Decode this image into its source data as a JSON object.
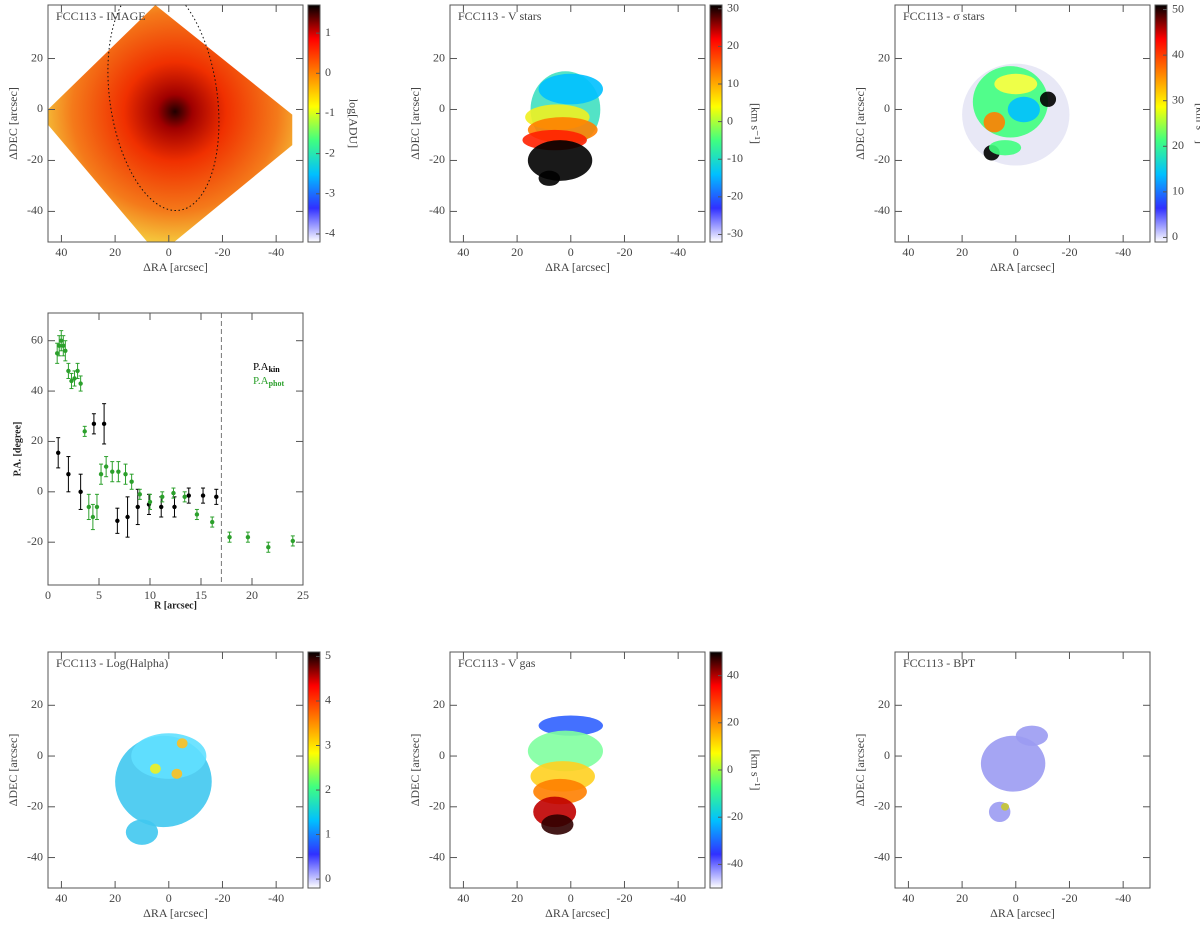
{
  "chart_data": [
    {
      "type": "map",
      "title": "FCC113 - IMAGE",
      "xlabel": "ΔRA [arcsec]",
      "ylabel": "ΔDEC [arcsec]",
      "xlim": [
        45,
        -50
      ],
      "xticks": [
        40,
        20,
        0,
        -20,
        -40
      ],
      "ylim": [
        -52,
        41
      ],
      "yticks": [
        -40,
        -20,
        0,
        20
      ],
      "colorbar": {
        "lim": [
          -4.2,
          1.7
        ],
        "ticks": [
          -4,
          -3,
          -2,
          -1,
          0,
          1
        ],
        "label": "log[ADU]",
        "colormap": [
          "#ffffff",
          "#3030ff",
          "#00c0ff",
          "#40ff80",
          "#ffff00",
          "#ff8000",
          "#ff0000",
          "#000000"
        ]
      }
    },
    {
      "type": "map",
      "title": "FCC113 - V stars",
      "xlabel": "ΔRA [arcsec]",
      "ylabel": "ΔDEC [arcsec]",
      "xlim": [
        45,
        -50
      ],
      "xticks": [
        40,
        20,
        0,
        -20,
        -40
      ],
      "ylim": [
        -52,
        41
      ],
      "yticks": [
        -40,
        -20,
        0,
        20
      ],
      "colorbar": {
        "lim": [
          -32,
          31
        ],
        "ticks": [
          -30,
          -20,
          -10,
          0,
          10,
          20,
          30
        ],
        "label": "[km s⁻¹]",
        "colormap": [
          "#ffffff",
          "#3030ff",
          "#00c0ff",
          "#40ff80",
          "#ffff00",
          "#ff8000",
          "#ff0000",
          "#000000"
        ]
      }
    },
    {
      "type": "map",
      "title": "FCC113 - σ stars",
      "xlabel": "ΔRA [arcsec]",
      "ylabel": "ΔDEC [arcsec]",
      "xlim": [
        45,
        -50
      ],
      "xticks": [
        40,
        20,
        0,
        -20,
        -40
      ],
      "ylim": [
        -52,
        41
      ],
      "yticks": [
        -40,
        -20,
        0,
        20
      ],
      "colorbar": {
        "lim": [
          -1,
          51
        ],
        "ticks": [
          0,
          10,
          20,
          30,
          40,
          50
        ],
        "label": "[km s⁻¹]",
        "colormap": [
          "#ffffff",
          "#3030ff",
          "#00c0ff",
          "#40ff80",
          "#ffff00",
          "#ff8000",
          "#ff0000",
          "#000000"
        ]
      }
    },
    {
      "type": "scatter",
      "xlabel": "R [arcsec]",
      "ylabel": "P.A. [degree]",
      "xlim": [
        0,
        25
      ],
      "xticks": [
        0,
        5,
        10,
        15,
        20,
        25
      ],
      "ylim": [
        -37,
        71
      ],
      "yticks": [
        -20,
        0,
        20,
        40,
        60
      ],
      "vline": 17,
      "series": [
        {
          "name": "P.A",
          "subscript": "kin",
          "color": "#000000",
          "x": [
            1.0,
            2.0,
            3.2,
            4.5,
            5.5,
            6.8,
            7.8,
            8.8,
            9.9,
            11.1,
            12.4,
            13.8,
            15.2,
            16.5
          ],
          "values": [
            15.5,
            7,
            0,
            27,
            27,
            -11.5,
            -10,
            -6,
            -5,
            -6,
            -6,
            -1.5,
            -1.5,
            -2
          ],
          "errors": [
            6,
            7,
            7,
            4,
            8,
            5,
            8,
            7,
            4,
            4,
            4,
            3,
            3,
            3
          ]
        },
        {
          "name": "P.A",
          "subscript": "phot",
          "color": "#2ca02c",
          "x": [
            0.9,
            1.1,
            1.3,
            1.5,
            1.7,
            2.0,
            2.3,
            2.6,
            2.9,
            3.2,
            3.6,
            4.0,
            4.4,
            4.8,
            5.2,
            5.7,
            6.3,
            6.9,
            7.6,
            8.2,
            9.0,
            10.0,
            11.2,
            12.3,
            13.4,
            14.6,
            16.1,
            17.8,
            19.6,
            21.6,
            24.0
          ],
          "values": [
            55,
            58,
            60,
            58,
            56,
            48,
            44,
            45,
            48,
            43,
            24,
            -6,
            -10,
            -6,
            7,
            10,
            8,
            8,
            7,
            4,
            -1,
            -4,
            -2,
            -0.5,
            -2,
            -9,
            -12,
            -18,
            -18,
            -22,
            -19.5
          ],
          "errors": [
            4,
            4,
            4,
            4,
            4,
            3,
            3,
            3,
            3,
            3,
            2,
            5,
            5,
            5,
            4,
            4,
            4,
            4,
            4,
            3,
            2,
            3,
            2,
            2,
            2,
            2,
            2,
            2,
            2,
            2,
            2
          ]
        }
      ]
    },
    {
      "type": "map",
      "title": "FCC113 - Log(Halpha)",
      "xlabel": "ΔRA [arcsec]",
      "ylabel": "ΔDEC [arcsec]",
      "xlim": [
        45,
        -50
      ],
      "xticks": [
        40,
        20,
        0,
        -20,
        -40
      ],
      "ylim": [
        -52,
        41
      ],
      "yticks": [
        -40,
        -20,
        0,
        20
      ],
      "colorbar": {
        "lim": [
          -0.2,
          5.1
        ],
        "ticks": [
          0,
          1,
          2,
          3,
          4,
          5
        ],
        "colormap": [
          "#ffffff",
          "#3030ff",
          "#00c0ff",
          "#40ff80",
          "#ffff00",
          "#ff8000",
          "#ff0000",
          "#000000"
        ]
      }
    },
    {
      "type": "map",
      "title": "FCC113 - V gas",
      "xlabel": "ΔRA [arcsec]",
      "ylabel": "ΔDEC [arcsec]",
      "xlim": [
        45,
        -50
      ],
      "xticks": [
        40,
        20,
        0,
        -20,
        -40
      ],
      "ylim": [
        -52,
        41
      ],
      "yticks": [
        -40,
        -20,
        0,
        20
      ],
      "colorbar": {
        "lim": [
          -50,
          50
        ],
        "ticks": [
          -40,
          -20,
          0,
          20,
          40
        ],
        "label": "[km s⁻¹]",
        "colormap": [
          "#ffffff",
          "#3030ff",
          "#00c0ff",
          "#40ff80",
          "#ffff00",
          "#ff8000",
          "#ff0000",
          "#000000"
        ]
      }
    },
    {
      "type": "map",
      "title": "FCC113 - BPT",
      "xlabel": "ΔRA [arcsec]",
      "ylabel": "ΔDEC [arcsec]",
      "xlim": [
        45,
        -50
      ],
      "xticks": [
        40,
        20,
        0,
        -20,
        -40
      ],
      "ylim": [
        -52,
        41
      ],
      "yticks": [
        -40,
        -20,
        0,
        20
      ]
    }
  ]
}
